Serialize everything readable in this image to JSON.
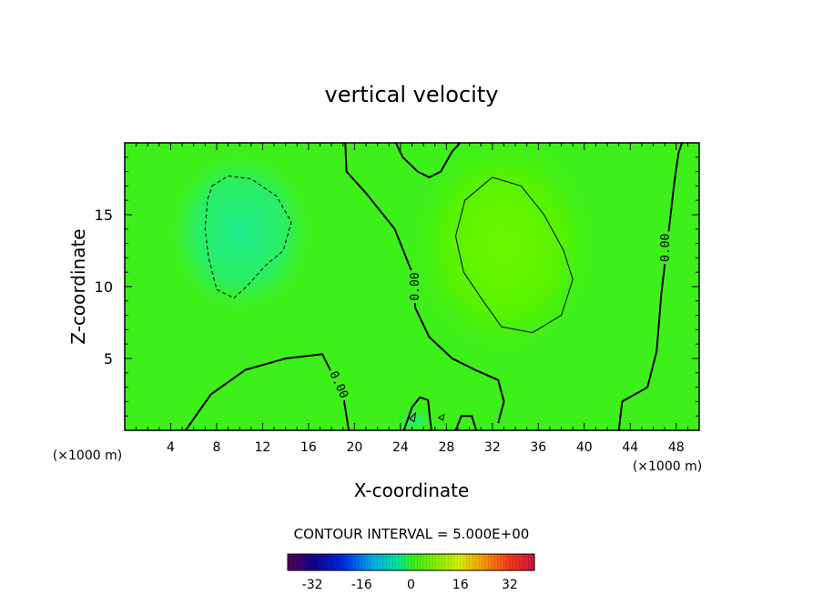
{
  "chart_data": {
    "type": "heatmap",
    "title": "vertical velocity",
    "xlabel": "X-coordinate",
    "ylabel": "Z-coordinate",
    "x_unit_left": "(×1000 m)",
    "x_unit_right": "(×1000 m)",
    "xlim": [
      0,
      50
    ],
    "ylim": [
      0,
      20
    ],
    "x_ticks": [
      4,
      8,
      12,
      16,
      20,
      24,
      28,
      32,
      36,
      40,
      44,
      48
    ],
    "y_ticks": [
      5,
      10,
      15
    ],
    "contour_interval_label": "CONTOUR INTERVAL = 5.000E+00",
    "contour_labels": [
      {
        "text": "0.00",
        "x": 18.7,
        "z": 3.2
      },
      {
        "text": "0.00",
        "x": 25.2,
        "z": 10.0
      },
      {
        "text": "0.00",
        "x": 47.0,
        "z": 12.7
      }
    ],
    "field_description": "mostly near zero; positive max around x=33, z=12; negative min around x=10, z=13",
    "colorbar": {
      "range": [
        -40,
        40
      ],
      "tick_values": [
        -32,
        -16,
        0,
        16,
        32
      ],
      "tick_labels": [
        "-32",
        "-16",
        "0",
        "16",
        "32"
      ]
    },
    "contours": [
      {
        "level": 0,
        "style": "solid-thick",
        "points": [
          [
            19.5,
            0
          ],
          [
            19.0,
            2.5
          ],
          [
            18.0,
            4.0
          ],
          [
            17.2,
            5.3
          ],
          [
            14.0,
            5.0
          ],
          [
            10.5,
            4.2
          ],
          [
            7.5,
            2.5
          ],
          [
            5.3,
            0
          ]
        ]
      },
      {
        "level": 0,
        "style": "solid-thick",
        "points": [
          [
            19.2,
            20
          ],
          [
            19.3,
            18
          ],
          [
            21,
            16.5
          ],
          [
            23.5,
            14
          ],
          [
            25,
            11
          ],
          [
            25.3,
            8.5
          ],
          [
            26.5,
            6.5
          ],
          [
            28.5,
            5
          ],
          [
            30.5,
            4.2
          ],
          [
            32.5,
            3.5
          ],
          [
            33,
            2
          ],
          [
            32.5,
            0.5
          ]
        ]
      },
      {
        "level": 0,
        "style": "solid-thick",
        "points": [
          [
            23.6,
            20
          ],
          [
            24.2,
            19
          ],
          [
            25.5,
            18
          ],
          [
            26.5,
            17.6
          ],
          [
            27.5,
            18
          ],
          [
            28.5,
            19.4
          ],
          [
            29.2,
            20
          ]
        ]
      },
      {
        "level": 0,
        "style": "solid-thick",
        "points": [
          [
            24.3,
            0
          ],
          [
            25.0,
            1.6
          ],
          [
            25.7,
            2.3
          ],
          [
            26.4,
            2.1
          ],
          [
            26.6,
            0.6
          ],
          [
            26.7,
            0
          ]
        ]
      },
      {
        "level": 0,
        "style": "solid-thick",
        "points": [
          [
            28.8,
            0
          ],
          [
            29.3,
            1.0
          ],
          [
            30.2,
            1.0
          ],
          [
            30.6,
            0
          ]
        ]
      },
      {
        "level": 0,
        "style": "solid-thick",
        "points": [
          [
            43.0,
            0
          ],
          [
            43.3,
            2.0
          ],
          [
            45.5,
            3.0
          ],
          [
            46.3,
            5.5
          ],
          [
            46.7,
            9.5
          ],
          [
            47.3,
            13.5
          ],
          [
            47.8,
            17
          ],
          [
            48.2,
            19.3
          ],
          [
            48.5,
            20
          ]
        ]
      },
      {
        "level": 5,
        "style": "solid-thin",
        "points": [
          [
            32.0,
            17.6
          ],
          [
            34.5,
            17.0
          ],
          [
            36.5,
            15.0
          ],
          [
            38.2,
            12.5
          ],
          [
            39.0,
            10.5
          ],
          [
            38.0,
            8.0
          ],
          [
            35.5,
            6.8
          ],
          [
            32.8,
            7.2
          ],
          [
            31.2,
            9.0
          ],
          [
            29.5,
            11.0
          ],
          [
            28.8,
            13.5
          ],
          [
            29.6,
            16.0
          ],
          [
            32.0,
            17.6
          ]
        ]
      },
      {
        "level": -5,
        "style": "dashed",
        "points": [
          [
            7.6,
            17.0
          ],
          [
            9.0,
            17.7
          ],
          [
            11.0,
            17.5
          ],
          [
            13.2,
            16.3
          ],
          [
            14.5,
            14.5
          ],
          [
            13.8,
            12.5
          ],
          [
            12.3,
            11.5
          ],
          [
            10.6,
            10.0
          ],
          [
            9.5,
            9.2
          ],
          [
            8.0,
            9.8
          ],
          [
            7.3,
            12.0
          ],
          [
            7.0,
            14.0
          ],
          [
            7.2,
            16.0
          ],
          [
            7.6,
            17.0
          ]
        ]
      },
      {
        "level": 0,
        "style": "solid-thin",
        "points": [
          [
            24.8,
            0.8
          ],
          [
            25.3,
            1.2
          ],
          [
            25.2,
            0.6
          ],
          [
            24.8,
            0.8
          ]
        ]
      },
      {
        "level": 0,
        "style": "solid-thin",
        "points": [
          [
            27.3,
            0.9
          ],
          [
            27.8,
            1.1
          ],
          [
            27.7,
            0.7
          ],
          [
            27.3,
            0.9
          ]
        ]
      }
    ]
  }
}
